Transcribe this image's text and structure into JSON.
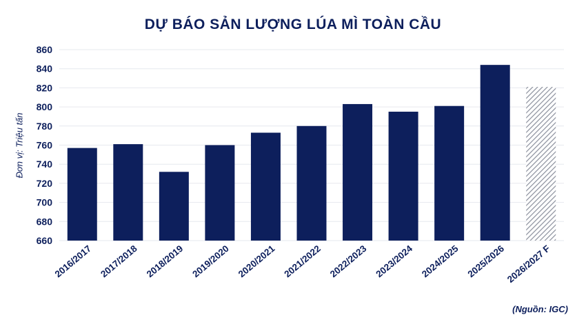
{
  "chart_data": {
    "type": "bar",
    "title": "DỰ BÁO SẢN LƯỢNG LÚA MÌ TOÀN CẦU",
    "ylabel": "Đơn vị: Triệu tấn",
    "xlabel": "",
    "source": "(Nguồn: IGC)",
    "categories": [
      "2016/2017",
      "2017/2018",
      "2018/2019",
      "2019/2020",
      "2020/2021",
      "2021/2022",
      "2022/2023",
      "2023/2024",
      "2024/2025",
      "2025/2026",
      "2026/2027 F"
    ],
    "values": [
      757,
      761,
      732,
      760,
      773,
      780,
      803,
      795,
      801,
      844,
      821
    ],
    "forecast": [
      false,
      false,
      false,
      false,
      false,
      false,
      false,
      false,
      false,
      false,
      true
    ],
    "ylim": [
      660,
      860
    ],
    "yticks": [
      660,
      680,
      700,
      720,
      740,
      760,
      780,
      800,
      820,
      840,
      860
    ],
    "grid": true,
    "colors": {
      "bar": "#0d1f5c",
      "forecast_hatch": "#8a8f9c",
      "grid": "#e6e8ee",
      "text": "#0d1f5c"
    }
  }
}
